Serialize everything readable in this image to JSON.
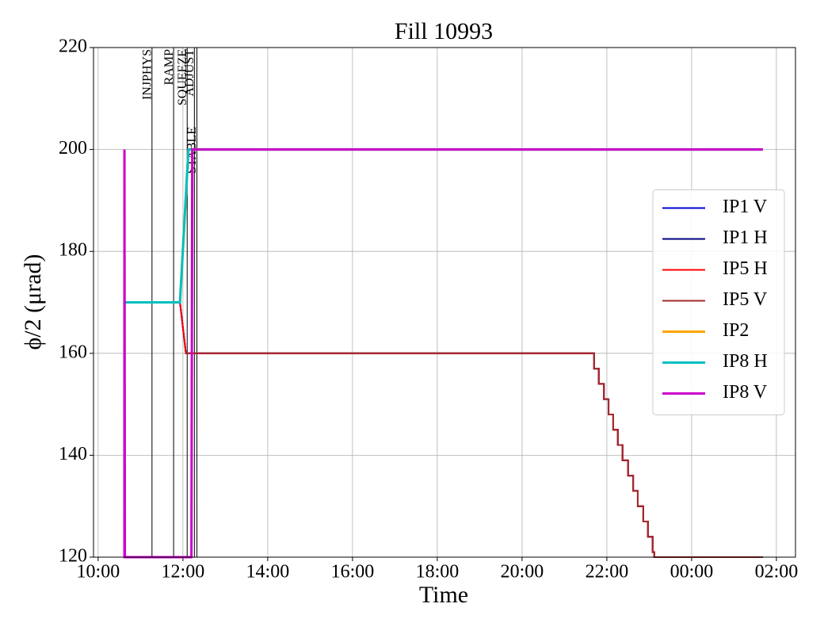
{
  "chart_data": {
    "type": "line",
    "title": "Fill 10993",
    "x_label": "Time",
    "y_label": "ϕ/2 (μrad)",
    "xlim": [
      9.89,
      26.45
    ],
    "ylim": [
      120,
      220
    ],
    "xticks": [
      {
        "value": 10,
        "label": "10:00"
      },
      {
        "value": 12,
        "label": "12:00"
      },
      {
        "value": 14,
        "label": "14:00"
      },
      {
        "value": 16,
        "label": "16:00"
      },
      {
        "value": 18,
        "label": "18:00"
      },
      {
        "value": 20,
        "label": "20:00"
      },
      {
        "value": 22,
        "label": "22:00"
      },
      {
        "value": 24,
        "label": "00:00"
      },
      {
        "value": 26,
        "label": "02:00"
      }
    ],
    "yticks": [
      120,
      140,
      160,
      180,
      200,
      220
    ],
    "grid": true,
    "legend": "center right",
    "annotations": [
      {
        "label": "INJPHYS",
        "x": 11.27
      },
      {
        "label": "RAMP",
        "x": 11.78
      },
      {
        "label": "SQUEEZE",
        "x": 12.1
      },
      {
        "label": "ADJUST",
        "x": 12.27
      },
      {
        "label": "STABLE",
        "x": 12.33
      }
    ],
    "series": [
      {
        "name": "IP1 V",
        "color": "#0000cc",
        "width": 2,
        "x": [
          11.93,
          12.07,
          21.7,
          21.7,
          21.81,
          21.81,
          21.93,
          21.93,
          22.04,
          22.04,
          22.15,
          22.15,
          22.26,
          22.26,
          22.37,
          22.37,
          22.5,
          22.5,
          22.62,
          22.62,
          22.73,
          22.73,
          22.86,
          22.86,
          22.97,
          22.97,
          23.08,
          23.08,
          23.12,
          23.12,
          25.68
        ],
        "values": [
          170,
          160,
          160,
          157,
          157,
          154,
          154,
          151,
          151,
          148,
          148,
          145,
          145,
          142,
          142,
          139,
          139,
          136,
          136,
          133,
          133,
          130,
          130,
          127,
          127,
          124,
          124,
          121,
          121,
          120,
          120
        ]
      },
      {
        "name": "IP1 H",
        "color": "#000080",
        "width": 2,
        "x": [
          11.93,
          12.07,
          21.7,
          21.7,
          21.81,
          21.81,
          21.93,
          21.93,
          22.04,
          22.04,
          22.15,
          22.15,
          22.26,
          22.26,
          22.37,
          22.37,
          22.5,
          22.5,
          22.62,
          22.62,
          22.73,
          22.73,
          22.86,
          22.86,
          22.97,
          22.97,
          23.08,
          23.08,
          23.12,
          23.12,
          25.68
        ],
        "values": [
          170,
          160,
          160,
          157,
          157,
          154,
          154,
          151,
          151,
          148,
          148,
          145,
          145,
          142,
          142,
          139,
          139,
          136,
          136,
          133,
          133,
          130,
          130,
          127,
          127,
          124,
          124,
          121,
          121,
          120,
          120
        ]
      },
      {
        "name": "IP5 H",
        "color": "#ff0000",
        "width": 2,
        "x": [
          11.93,
          12.07,
          21.7,
          21.7,
          21.81,
          21.81,
          21.93,
          21.93,
          22.04,
          22.04,
          22.15,
          22.15,
          22.26,
          22.26,
          22.37,
          22.37,
          22.5,
          22.5,
          22.62,
          22.62,
          22.73,
          22.73,
          22.86,
          22.86,
          22.97,
          22.97,
          23.08,
          23.08,
          23.12,
          23.12,
          25.68
        ],
        "values": [
          170,
          160,
          160,
          157,
          157,
          154,
          154,
          151,
          151,
          148,
          148,
          145,
          145,
          142,
          142,
          139,
          139,
          136,
          136,
          133,
          133,
          130,
          130,
          127,
          127,
          124,
          124,
          121,
          121,
          120,
          120
        ]
      },
      {
        "name": "IP5 V",
        "color": "#a52a2a",
        "width": 2,
        "x": [
          12.07,
          21.7,
          21.7,
          21.81,
          21.81,
          21.93,
          21.93,
          22.04,
          22.04,
          22.15,
          22.15,
          22.26,
          22.26,
          22.37,
          22.37,
          22.5,
          22.5,
          22.62,
          22.62,
          22.73,
          22.73,
          22.86,
          22.86,
          22.97,
          22.97,
          23.08,
          23.08,
          23.12,
          23.12,
          25.68
        ],
        "values": [
          160,
          160,
          157,
          157,
          154,
          154,
          151,
          151,
          148,
          148,
          145,
          145,
          142,
          142,
          139,
          139,
          136,
          136,
          133,
          133,
          130,
          130,
          127,
          127,
          124,
          124,
          121,
          121,
          120,
          120
        ]
      },
      {
        "name": "IP2",
        "color": "#ffa500",
        "width": 3,
        "x": [
          10.62,
          10.62,
          11.93,
          12.13,
          25.68
        ],
        "values": [
          120,
          170,
          170,
          200,
          200
        ]
      },
      {
        "name": "IP8 H",
        "color": "#00bfbf",
        "width": 3,
        "x": [
          10.62,
          10.62,
          11.93,
          12.13,
          25.68
        ],
        "values": [
          120,
          170,
          170,
          200,
          200
        ]
      },
      {
        "name": "IP8 V",
        "color": "#cc00cc",
        "width": 3,
        "x": [
          10.62,
          10.62,
          10.63,
          12.2,
          12.22,
          25.68
        ],
        "values": [
          120,
          200,
          120,
          120,
          200,
          200
        ]
      }
    ]
  }
}
